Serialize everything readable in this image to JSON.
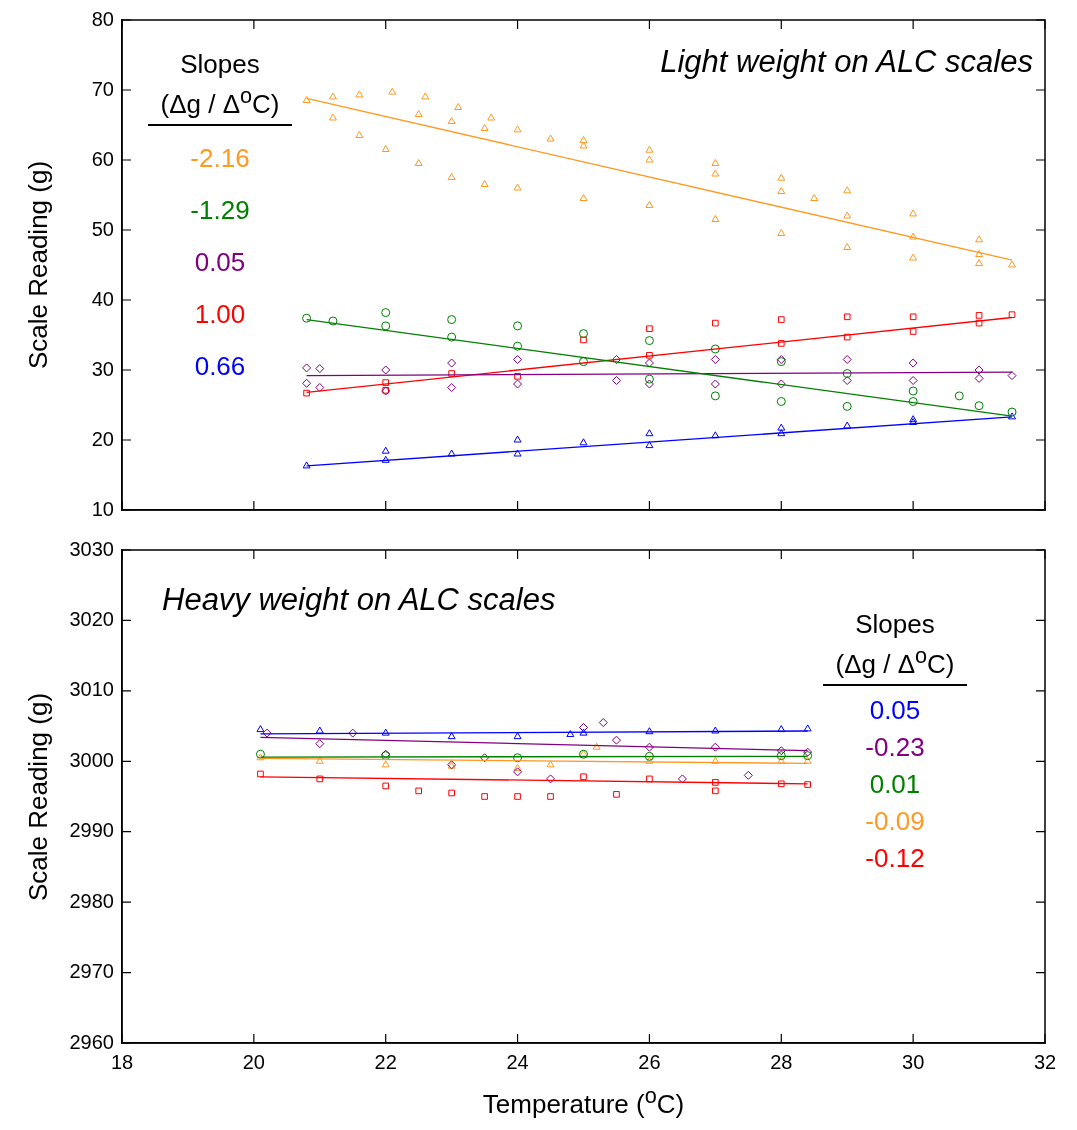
{
  "chart_data": [
    {
      "type": "scatter",
      "title": "Light weight on ALC scales",
      "ylabel": "Scale Reading (g)",
      "legend_title": "Slopes (Δg / Δ$^{o}$C)",
      "legend": "top left",
      "grid": false,
      "tick_labels": "y",
      "xlim": [
        18,
        32
      ],
      "xticks": [
        18,
        20,
        22,
        24,
        26,
        28,
        30,
        32
      ],
      "ylim": [
        10,
        80
      ],
      "yticks": [
        10,
        20,
        30,
        40,
        50,
        60,
        70,
        80
      ],
      "series": [
        {
          "name": "-2.16",
          "color": "#ff9922",
          "marker": "triangle",
          "x": [
            20.8,
            21.2,
            21.6,
            22.1,
            22.6,
            23.1,
            23.6,
            24,
            25,
            26,
            27,
            28,
            29,
            30,
            31,
            31.5,
            21.2,
            21.6,
            22,
            22.5,
            23,
            23.5,
            24,
            25,
            26,
            27,
            28,
            29,
            30,
            31,
            22.5,
            23,
            23.5,
            24.5,
            25,
            26,
            27,
            28,
            28.5,
            29,
            30,
            31
          ],
          "values": [
            68.5,
            69,
            69.3,
            69.7,
            69,
            67.5,
            66,
            64.3,
            62.8,
            61.4,
            59.5,
            57.4,
            55.6,
            52.3,
            48.6,
            45,
            66,
            63.5,
            61.5,
            59.5,
            57.5,
            56.5,
            56,
            54.5,
            53.5,
            51.5,
            49.5,
            47.5,
            46,
            45.2,
            66.5,
            65.5,
            64.5,
            63,
            62,
            60,
            58,
            55.5,
            54.5,
            52,
            49,
            46.5
          ]
        },
        {
          "color": "#ff9922",
          "type": "line",
          "x": [
            20.8,
            31.5
          ],
          "values": [
            68.8,
            45.7
          ]
        },
        {
          "name": "-1.29",
          "color": "#008000",
          "marker": "circle",
          "x": [
            20.8,
            22,
            23,
            24,
            25,
            26,
            27,
            28,
            29,
            30,
            31,
            31.5,
            21.2,
            22,
            23,
            24,
            25,
            26,
            27,
            28,
            29,
            30,
            30.7
          ],
          "values": [
            37.4,
            38.2,
            37.2,
            36.3,
            35.2,
            34.2,
            33,
            31.2,
            29.5,
            27,
            24.9,
            24,
            37,
            36.3,
            34.7,
            33.4,
            31.2,
            28.7,
            26.3,
            25.5,
            24.8,
            25.5,
            26.3
          ]
        },
        {
          "color": "#008000",
          "type": "line",
          "x": [
            20.8,
            31.5
          ],
          "values": [
            37.2,
            23.4
          ]
        },
        {
          "name": "0.05",
          "color": "#800080",
          "marker": "diamond",
          "x": [
            20.8,
            20.8,
            21,
            21,
            22,
            22,
            23,
            23,
            24,
            24,
            25.5,
            25.5,
            26,
            26,
            27,
            27,
            28,
            28,
            29,
            29,
            30,
            30,
            31,
            31,
            31.5
          ],
          "values": [
            30.3,
            28.1,
            30.2,
            27.5,
            30,
            27,
            31,
            27.5,
            31.5,
            28,
            31.5,
            28.5,
            31,
            28,
            31.5,
            28,
            31.5,
            28,
            31.5,
            28.5,
            31,
            28.5,
            30,
            28.8,
            29.2
          ]
        },
        {
          "color": "#800080",
          "type": "line",
          "x": [
            20.8,
            31.5
          ],
          "values": [
            29.2,
            29.7
          ]
        },
        {
          "name": "1.00",
          "color": "#ff0000",
          "marker": "square",
          "x": [
            20.8,
            22,
            24,
            26,
            28,
            29,
            30,
            31,
            31.5,
            22,
            23,
            25,
            26,
            27,
            28,
            29,
            30,
            31
          ],
          "values": [
            26.7,
            27.1,
            29.1,
            32.1,
            33.8,
            34.7,
            35.5,
            36.7,
            37.9,
            28.2,
            29.5,
            34.3,
            35.9,
            36.7,
            37.2,
            37.6,
            37.6,
            37.8
          ]
        },
        {
          "color": "#ff0000",
          "type": "line",
          "x": [
            20.8,
            31.5
          ],
          "values": [
            26.8,
            37.5
          ]
        },
        {
          "name": "0.66",
          "color": "#0000ff",
          "marker": "triangle",
          "x": [
            20.8,
            22,
            24,
            26,
            28,
            30,
            31.5,
            22,
            24,
            26,
            28,
            30,
            23,
            25,
            27,
            29
          ],
          "values": [
            16.3,
            17.1,
            18,
            19.2,
            20.9,
            22.5,
            23.3,
            18.4,
            20,
            20.9,
            21.7,
            22.9,
            18,
            19.6,
            20.6,
            22
          ]
        },
        {
          "color": "#0000ff",
          "type": "line",
          "x": [
            20.8,
            31.5
          ],
          "values": [
            16.3,
            23.3
          ]
        }
      ]
    },
    {
      "type": "scatter",
      "title": "Heavy weight on ALC scales",
      "xlabel": "Temperature ($^{o}$C)",
      "ylabel": "Scale Reading (g)",
      "legend_title": "Slopes (Δg / Δ$^{o}$C)",
      "legend": "right",
      "grid": false,
      "xlim": [
        18,
        32
      ],
      "xticks": [
        18,
        20,
        22,
        24,
        26,
        28,
        30,
        32
      ],
      "ylim": [
        2960,
        3030
      ],
      "yticks": [
        2960,
        2970,
        2980,
        2990,
        3000,
        3010,
        3020,
        3030
      ],
      "series": [
        {
          "name": "0.05",
          "color": "#0000ff",
          "marker": "triangle",
          "x": [
            20.1,
            21,
            22,
            23,
            24,
            24.8,
            25,
            26,
            27,
            28,
            28.4
          ],
          "values": [
            3004.5,
            3004.3,
            3004,
            3003.5,
            3003.5,
            3003.8,
            3004,
            3004.2,
            3004.3,
            3004.5,
            3004.6
          ]
        },
        {
          "color": "#0000ff",
          "type": "line",
          "x": [
            20.1,
            28.4
          ],
          "values": [
            3003.9,
            3004.3
          ]
        },
        {
          "name": "-0.23",
          "color": "#800080",
          "marker": "diamond",
          "x": [
            20.2,
            21,
            21.5,
            22,
            23,
            23.5,
            24,
            24.5,
            25,
            25.3,
            25.5,
            26,
            26.5,
            27,
            27.5,
            28,
            28.4
          ],
          "values": [
            3004,
            3002.5,
            3004,
            3001,
            2999.5,
            3000.5,
            2998.5,
            2997.5,
            3004.8,
            3005.5,
            3003,
            3002,
            2997.5,
            3002,
            2998,
            3001.5,
            3001.3
          ]
        },
        {
          "color": "#800080",
          "type": "line",
          "x": [
            20.1,
            28.4
          ],
          "values": [
            3003.4,
            3001.5
          ]
        },
        {
          "name": "0.01",
          "color": "#008000",
          "marker": "circle",
          "x": [
            20.1,
            22,
            24,
            25,
            26,
            28,
            28.4
          ],
          "values": [
            3001,
            3000.8,
            3000.5,
            3001,
            3000.7,
            3000.8,
            3000.8
          ]
        },
        {
          "color": "#008000",
          "type": "line",
          "x": [
            20.1,
            28.4
          ],
          "values": [
            3000.6,
            3000.7
          ]
        },
        {
          "name": "-0.09",
          "color": "#ff9922",
          "marker": "triangle",
          "x": [
            20.1,
            21,
            22,
            23,
            24,
            24.5,
            25,
            25.2,
            26,
            27,
            28,
            28.4
          ],
          "values": [
            3000.5,
            3000,
            2999.5,
            2999.3,
            2999,
            2999.5,
            3001,
            3002,
            3000,
            3000,
            3000,
            3000
          ]
        },
        {
          "color": "#ff9922",
          "type": "line",
          "x": [
            20.1,
            28.4
          ],
          "values": [
            3000.4,
            2999.7
          ]
        },
        {
          "name": "-0.12",
          "color": "#ff0000",
          "marker": "square",
          "x": [
            20.1,
            21,
            22,
            22.5,
            23,
            23.5,
            24,
            24.5,
            25,
            25.5,
            26,
            27,
            27,
            28,
            28.4
          ],
          "values": [
            2998.2,
            2997.5,
            2996.5,
            2995.8,
            2995.5,
            2995,
            2995,
            2995,
            2997.8,
            2995.3,
            2997.5,
            2997,
            2995.8,
            2996.8,
            2996.7
          ]
        },
        {
          "color": "#ff0000",
          "type": "line",
          "x": [
            20.1,
            28.4
          ],
          "values": [
            2997.8,
            2996.8
          ]
        }
      ]
    }
  ]
}
